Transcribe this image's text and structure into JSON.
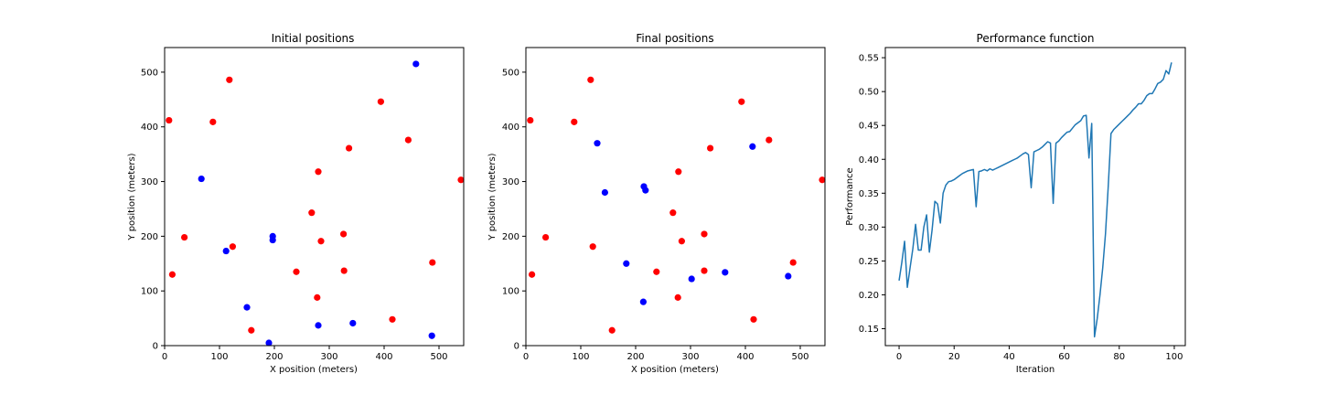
{
  "chart_data": [
    {
      "type": "scatter",
      "title": "Initial positions",
      "xlabel": "X position (meters)",
      "ylabel": "Y position (meters)",
      "xlim": [
        0,
        545
      ],
      "ylim": [
        0,
        545
      ],
      "xticks": [
        0,
        100,
        200,
        300,
        400,
        500
      ],
      "yticks": [
        0,
        100,
        200,
        300,
        400,
        500
      ],
      "grid": false,
      "series": [
        {
          "color": "#ff0000",
          "points": [
            [
              8,
              412
            ],
            [
              118,
              486
            ],
            [
              88,
              409
            ],
            [
              36,
              198
            ],
            [
              14,
              130
            ],
            [
              124,
              181
            ],
            [
              158,
              28
            ],
            [
              240,
              135
            ],
            [
              268,
              243
            ],
            [
              280,
              318
            ],
            [
              285,
              191
            ],
            [
              336,
              361
            ],
            [
              394,
              446
            ],
            [
              444,
              376
            ],
            [
              540,
              303
            ],
            [
              326,
              204
            ],
            [
              327,
              137
            ],
            [
              278,
              88
            ],
            [
              415,
              48
            ],
            [
              488,
              152
            ]
          ]
        },
        {
          "color": "#0000ff",
          "points": [
            [
              458,
              515
            ],
            [
              67,
              305
            ],
            [
              112,
              173
            ],
            [
              197,
              200
            ],
            [
              197,
              193
            ],
            [
              150,
              70
            ],
            [
              280,
              37
            ],
            [
              343,
              41
            ],
            [
              190,
              5
            ],
            [
              487,
              18
            ]
          ]
        }
      ]
    },
    {
      "type": "scatter",
      "title": "Final positions",
      "xlabel": "X position (meters)",
      "ylabel": "Y position (meters)",
      "xlim": [
        0,
        545
      ],
      "ylim": [
        0,
        545
      ],
      "xticks": [
        0,
        100,
        200,
        300,
        400,
        500
      ],
      "yticks": [
        0,
        100,
        200,
        300,
        400,
        500
      ],
      "grid": false,
      "series": [
        {
          "color": "#ff0000",
          "points": [
            [
              8,
              412
            ],
            [
              118,
              486
            ],
            [
              88,
              409
            ],
            [
              36,
              198
            ],
            [
              11,
              130
            ],
            [
              122,
              181
            ],
            [
              157,
              28
            ],
            [
              238,
              135
            ],
            [
              268,
              243
            ],
            [
              278,
              318
            ],
            [
              284,
              191
            ],
            [
              336,
              361
            ],
            [
              393,
              446
            ],
            [
              443,
              376
            ],
            [
              540,
              303
            ],
            [
              325,
              204
            ],
            [
              325,
              137
            ],
            [
              277,
              88
            ],
            [
              415,
              48
            ],
            [
              487,
              152
            ]
          ]
        },
        {
          "color": "#0000ff",
          "points": [
            [
              130,
              370
            ],
            [
              144,
              280
            ],
            [
              215,
              291
            ],
            [
              218,
              284
            ],
            [
              183,
              150
            ],
            [
              214,
              80
            ],
            [
              302,
              122
            ],
            [
              363,
              134
            ],
            [
              413,
              364
            ],
            [
              478,
              127
            ]
          ]
        }
      ]
    },
    {
      "type": "line",
      "title": "Performance function",
      "xlabel": "Iteration",
      "ylabel": "Performance",
      "xlim": [
        -5,
        104
      ],
      "ylim": [
        0.125,
        0.565
      ],
      "xticks": [
        0,
        20,
        40,
        60,
        80,
        100
      ],
      "yticks": [
        0.15,
        0.2,
        0.25,
        0.3,
        0.35,
        0.4,
        0.45,
        0.5,
        0.55
      ],
      "grid": false,
      "series": [
        {
          "color": "#1f77b4",
          "x": [
            0,
            1,
            2,
            3,
            4,
            5,
            6,
            7,
            8,
            9,
            10,
            11,
            12,
            13,
            14,
            15,
            16,
            17,
            18,
            19,
            20,
            21,
            22,
            23,
            24,
            25,
            26,
            27,
            28,
            29,
            30,
            31,
            32,
            33,
            34,
            35,
            36,
            37,
            38,
            39,
            40,
            41,
            42,
            43,
            44,
            45,
            46,
            47,
            48,
            49,
            50,
            51,
            52,
            53,
            54,
            55,
            56,
            57,
            58,
            59,
            60,
            61,
            62,
            63,
            64,
            65,
            66,
            67,
            68,
            69,
            70,
            71,
            72,
            73,
            74,
            75,
            76,
            77,
            78,
            79,
            80,
            81,
            82,
            83,
            84,
            85,
            86,
            87,
            88,
            89,
            90,
            91,
            92,
            93,
            94,
            95,
            96,
            97,
            98,
            99
          ],
          "y": [
            0.221,
            0.248,
            0.279,
            0.211,
            0.24,
            0.268,
            0.304,
            0.266,
            0.266,
            0.3,
            0.318,
            0.263,
            0.296,
            0.338,
            0.334,
            0.306,
            0.35,
            0.362,
            0.367,
            0.368,
            0.37,
            0.373,
            0.376,
            0.379,
            0.381,
            0.383,
            0.384,
            0.385,
            0.33,
            0.382,
            0.383,
            0.385,
            0.383,
            0.386,
            0.384,
            0.386,
            0.388,
            0.39,
            0.392,
            0.394,
            0.396,
            0.398,
            0.4,
            0.402,
            0.405,
            0.408,
            0.41,
            0.407,
            0.358,
            0.411,
            0.413,
            0.415,
            0.418,
            0.422,
            0.426,
            0.424,
            0.335,
            0.424,
            0.427,
            0.432,
            0.436,
            0.44,
            0.441,
            0.446,
            0.451,
            0.454,
            0.457,
            0.464,
            0.465,
            0.402,
            0.453,
            0.138,
            0.165,
            0.2,
            0.24,
            0.29,
            0.36,
            0.438,
            0.444,
            0.448,
            0.452,
            0.456,
            0.46,
            0.464,
            0.468,
            0.473,
            0.477,
            0.482,
            0.482,
            0.487,
            0.494,
            0.497,
            0.497,
            0.504,
            0.512,
            0.514,
            0.518,
            0.531,
            0.526,
            0.543
          ]
        }
      ]
    }
  ]
}
